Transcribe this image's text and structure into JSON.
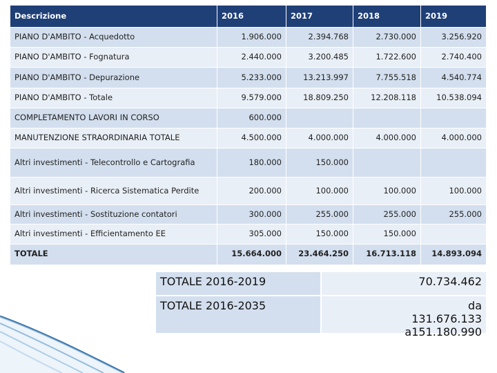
{
  "table": {
    "header": [
      "Descrizione",
      "2016",
      "2017",
      "2018",
      "2019"
    ],
    "rows": [
      [
        "PIANO D'AMBITO - Acquedotto",
        "1.906.000",
        "2.394.768",
        "2.730.000",
        "3.256.920"
      ],
      [
        "PIANO D'AMBITO - Fognatura",
        "2.440.000",
        "3.200.485",
        "1.722.600",
        "2.740.400"
      ],
      [
        "PIANO D'AMBITO - Depurazione",
        "5.233.000",
        "13.213.997",
        "7.755.518",
        "4.540.774"
      ],
      [
        "PIANO D'AMBITO - Totale",
        "9.579.000",
        "18.809.250",
        "12.208.118",
        "10.538.094"
      ],
      [
        "COMPLETAMENTO LAVORI IN CORSO",
        "600.000",
        null,
        null,
        null
      ],
      [
        "MANUTENZIONE STRAORDINARIA TOTALE",
        "4.500.000",
        "4.000.000",
        "4.000.000",
        "4.000.000"
      ],
      [
        "Altri investimenti - Telecontrollo e Cartografia",
        "180.000",
        "150.000",
        null,
        null
      ],
      [
        "Altri investimenti - Ricerca Sistematica Perdite",
        "200.000",
        "100.000",
        "100.000",
        "100.000"
      ],
      [
        "Altri investimenti - Sostituzione contatori",
        "300.000",
        "255.000",
        "255.000",
        "255.000"
      ],
      [
        "Altri investimenti - Efficientamento EE",
        "305.000",
        "150.000",
        "150.000",
        null
      ],
      [
        "TOTALE",
        "15.664.000",
        "23.464.250",
        "16.713.118",
        "14.893.094"
      ]
    ]
  },
  "summary": {
    "rows": [
      [
        "TOTALE 2016-2019",
        "70.734.462"
      ],
      [
        "TOTALE 2016-2035",
        "da 131.676.133 a151.180.990"
      ]
    ]
  }
}
